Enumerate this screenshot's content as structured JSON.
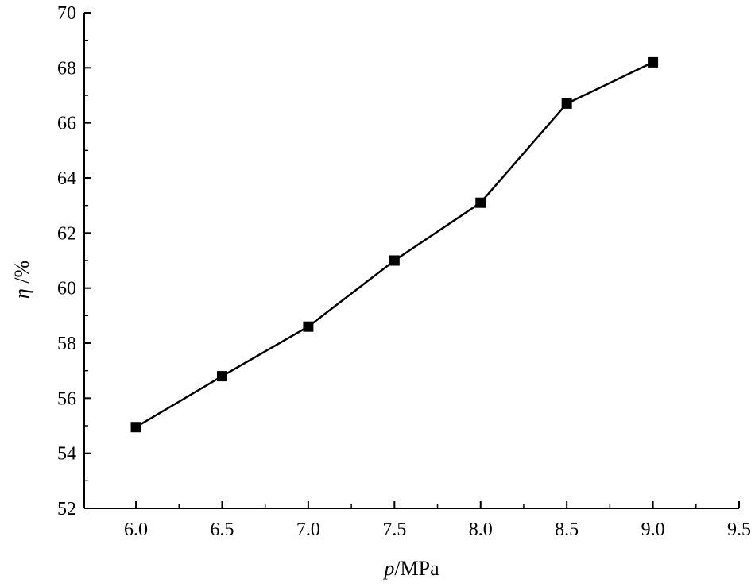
{
  "chart_data": {
    "type": "line",
    "title": "",
    "xlabel": {
      "var": "p",
      "unit": "/MPa"
    },
    "ylabel": {
      "var": "η",
      "unit": " /%"
    },
    "xlim": [
      5.7,
      9.5
    ],
    "ylim": [
      52,
      70
    ],
    "x_ticks": [
      "6.0",
      "6.5",
      "7.0",
      "7.5",
      "8.0",
      "8.5",
      "9.0",
      "9.5"
    ],
    "y_ticks": [
      "52",
      "54",
      "56",
      "58",
      "60",
      "62",
      "64",
      "66",
      "68",
      "70"
    ],
    "grid": false,
    "marker": "square",
    "series": [
      {
        "x": [
          6.0,
          6.5,
          7.0,
          7.5,
          8.0,
          8.5,
          9.0
        ],
        "values": [
          54.95,
          56.8,
          58.6,
          61.0,
          63.1,
          66.7,
          68.2
        ]
      }
    ]
  }
}
